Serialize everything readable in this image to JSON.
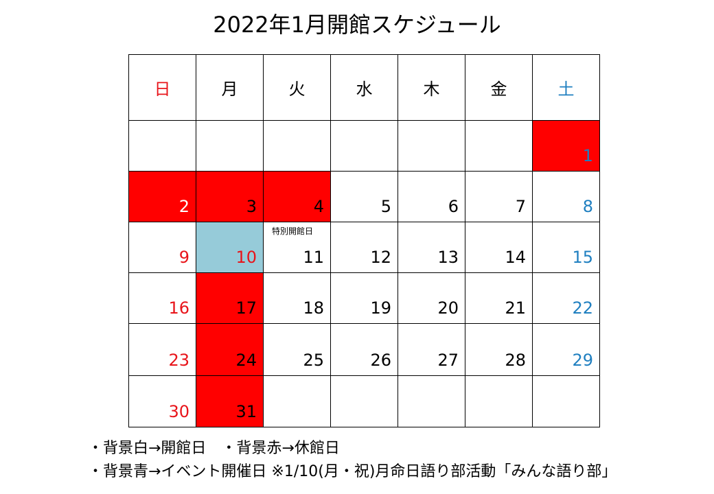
{
  "title": "2022年1月開館スケジュール",
  "weekdays": [
    "日",
    "月",
    "火",
    "水",
    "木",
    "金",
    "土"
  ],
  "colors": {
    "sunday_text": "#e8141a",
    "saturday_text": "#1f7fc0",
    "closed_bg": "#ff0000",
    "event_bg": "#96cbd9",
    "open_bg": "#ffffff"
  },
  "weeks": [
    [
      "",
      "",
      "",
      "",
      "",
      "",
      "1"
    ],
    [
      "2",
      "3",
      "4",
      "5",
      "6",
      "7",
      "8"
    ],
    [
      "9",
      "10",
      "11",
      "12",
      "13",
      "14",
      "15"
    ],
    [
      "16",
      "17",
      "18",
      "19",
      "20",
      "21",
      "22"
    ],
    [
      "23",
      "24",
      "25",
      "26",
      "27",
      "28",
      "29"
    ],
    [
      "30",
      "31",
      "",
      "",
      "",
      "",
      ""
    ]
  ],
  "special_note": "特別開館日",
  "legend": {
    "line1": "・背景白→開館日　・背景赤→休館日",
    "line2": "・背景青→イベント開催日 ※1/10(月・祝)月命日語り部活動「みんな語り部」"
  }
}
